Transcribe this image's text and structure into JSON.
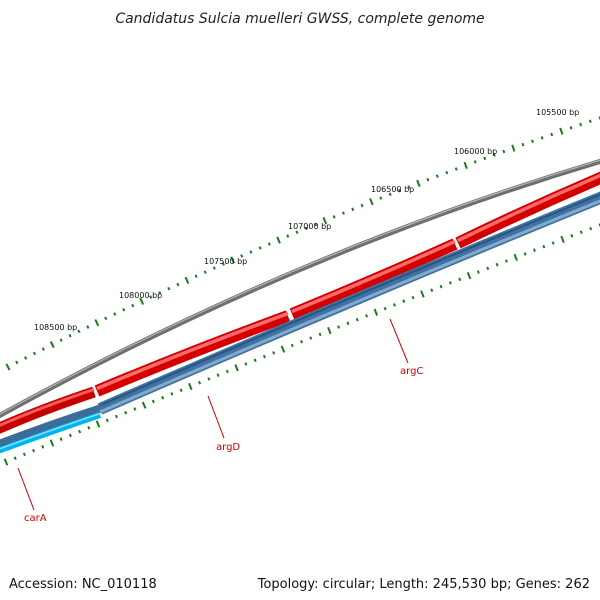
{
  "title": "Candidatus Sulcia muelleri GWSS, complete genome",
  "footer": {
    "accession": "Accession: NC_010118",
    "summary": "Topology: circular; Length: 245,530 bp; Genes: 262"
  },
  "colors": {
    "backbone": "#808080",
    "forward_gene": "#ee0000",
    "reverse_gene": "#4a7eac",
    "reverse_gene_alt": "#00b4ee",
    "tick": "#1e7a1e",
    "label": "#cc0000"
  },
  "ticks": [
    {
      "label": "108500 bp"
    },
    {
      "label": "108000 bp"
    },
    {
      "label": "107500 bp"
    },
    {
      "label": "107000 bp"
    },
    {
      "label": "106500 bp"
    },
    {
      "label": "106000 bp"
    },
    {
      "label": "105500 bp"
    }
  ],
  "genes": [
    {
      "label": "argC",
      "strand": "reverse"
    },
    {
      "label": "argD",
      "strand": "reverse"
    },
    {
      "label": "carA",
      "strand": "reverse"
    }
  ]
}
